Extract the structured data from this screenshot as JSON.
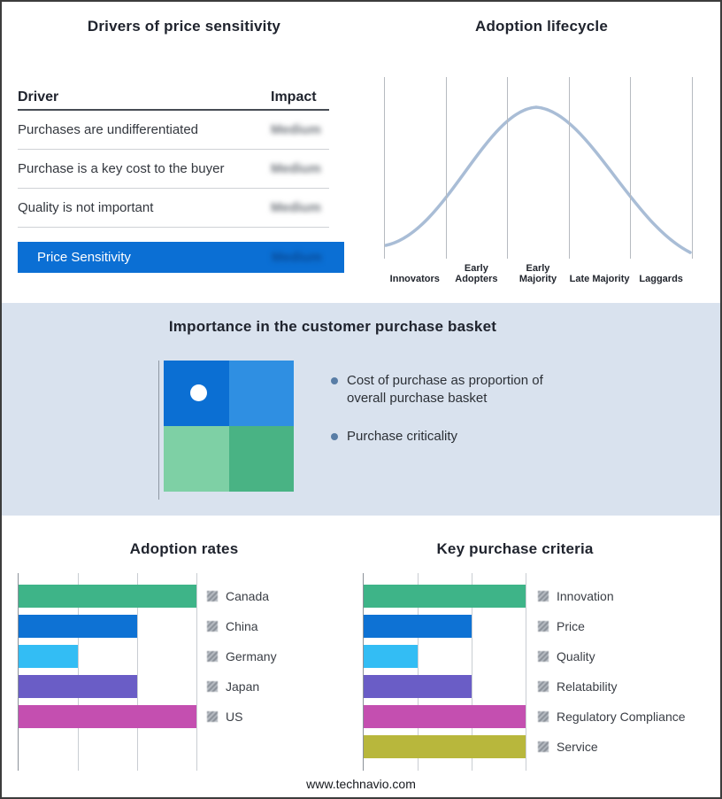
{
  "page": {
    "footer_url": "www.technavio.com"
  },
  "panels": {
    "drivers": {
      "title": "Drivers of price sensitivity"
    },
    "lifecycle": {
      "title": "Adoption lifecycle"
    },
    "basket": {
      "title": "Importance in the customer purchase basket",
      "bullets": [
        "Cost of purchase as proportion of overall purchase basket",
        "Purchase criticality"
      ],
      "quadrant_colors": {
        "top_left": "#0b6fd3",
        "top_right": "#2f8fe2",
        "bottom_left": "#7ed0a5",
        "bottom_right": "#49b384"
      },
      "background": "#d9e2ee"
    },
    "adoption_rates": {
      "title": "Adoption rates"
    },
    "key_purchase_criteria": {
      "title": "Key purchase criteria"
    }
  },
  "chart_data": [
    {
      "id": "drivers_table",
      "type": "table",
      "columns": [
        "Driver",
        "Impact"
      ],
      "rows": [
        [
          "Purchases are undifferentiated",
          "Medium"
        ],
        [
          "Purchase is a key cost to the buyer",
          "Medium"
        ],
        [
          "Quality is not important",
          "Medium"
        ]
      ],
      "summary_row": [
        "Price Sensitivity",
        "Medium"
      ],
      "summary_color": "#0b6fd4",
      "values_obscured": true
    },
    {
      "id": "adoption_lifecycle",
      "type": "area",
      "title": "Adoption lifecycle",
      "curve": "bell",
      "categories": [
        "Innovators",
        "Early Adopters",
        "Early Majority",
        "Late Majority",
        "Laggards"
      ],
      "peak_category": "Early Majority",
      "curve_color": "#a9bdd6",
      "grid": true,
      "value_axis_visible": false
    },
    {
      "id": "adoption_rates",
      "type": "bar",
      "orientation": "horizontal",
      "title": "Adoption rates",
      "categories": [
        "Canada",
        "China",
        "Germany",
        "Japan",
        "US"
      ],
      "values": [
        3,
        2,
        1,
        2,
        3
      ],
      "xlim": [
        0,
        3
      ],
      "gridlines": 3,
      "value_labels": false,
      "legend_position": "right",
      "legend_swatches_obscured": true,
      "colors": [
        "#3eb488",
        "#0e72d4",
        "#33bdf4",
        "#6a5dc6",
        "#c44fb0"
      ]
    },
    {
      "id": "key_purchase_criteria",
      "type": "bar",
      "orientation": "horizontal",
      "title": "Key purchase criteria",
      "categories": [
        "Innovation",
        "Price",
        "Quality",
        "Relatability",
        "Regulatory Compliance",
        "Service"
      ],
      "values": [
        3,
        2,
        1,
        2,
        3,
        3
      ],
      "xlim": [
        0,
        3
      ],
      "gridlines": 3,
      "value_labels": false,
      "legend_position": "right",
      "legend_swatches_obscured": true,
      "colors": [
        "#3eb488",
        "#0e72d4",
        "#33bdf4",
        "#6a5dc6",
        "#c44fb0",
        "#b8b73c"
      ]
    }
  ]
}
